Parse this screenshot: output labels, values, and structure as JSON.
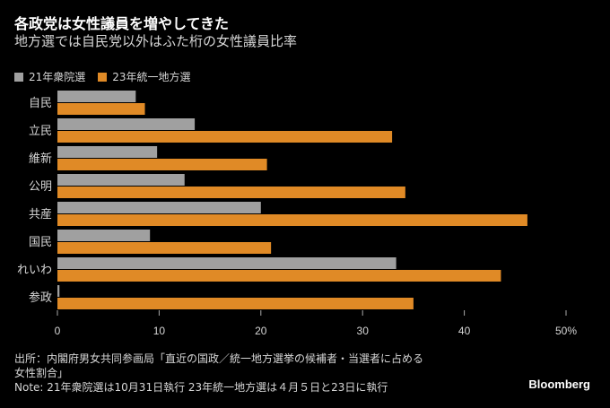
{
  "chart_data": {
    "type": "bar",
    "orientation": "horizontal",
    "title": "各政党は女性議員を増やしてきた",
    "subtitle": "地方選では自民党以外はふた桁の女性議員比率",
    "categories": [
      "自民",
      "立民",
      "維新",
      "公明",
      "共産",
      "国民",
      "れいわ",
      "参政"
    ],
    "series": [
      {
        "name": "21年衆院選",
        "color": "#a0a0a0",
        "values": [
          7.7,
          13.5,
          9.8,
          12.5,
          20.0,
          9.1,
          33.3,
          0.2
        ]
      },
      {
        "name": "23年統一地方選",
        "color": "#e08a26",
        "values": [
          8.6,
          32.9,
          20.6,
          34.2,
          46.2,
          21.0,
          43.6,
          35.0
        ]
      }
    ],
    "xlim": [
      0,
      50
    ],
    "xticks": [
      0,
      10,
      20,
      30,
      40,
      50
    ],
    "xtick_labels": [
      "0",
      "10",
      "20",
      "30",
      "40",
      "50%"
    ],
    "xlabel": "",
    "ylabel": "",
    "grid": false,
    "legend_position": "top-left"
  },
  "footer": {
    "source_line1": "出所：内閣府男女共同参画局「直近の国政／統一地方選挙の候補者・当選者に占める",
    "source_line2": "女性割合」",
    "note": "Note: 21年衆院選は10月31日執行 23年統一地方選は４月５日と23日に執行"
  },
  "brand": "Bloomberg"
}
